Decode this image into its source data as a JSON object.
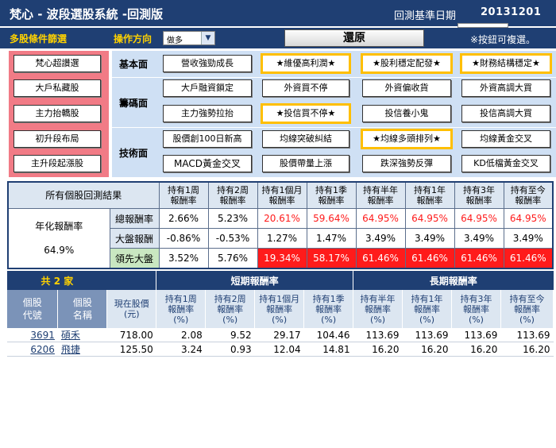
{
  "header": {
    "title": "梵心 - 波段選股系統 -回測版",
    "base_date_label": "回測基準日期",
    "base_date": "20131201"
  },
  "toolbar": {
    "filter_label": "多股條件篩選",
    "direction_label": "操作方向",
    "direction_value": "做多",
    "restore_label": "還原",
    "hint": "※按鈕可複選。"
  },
  "filters": {
    "presets": [
      "梵心超讚選",
      "大戶私藏股",
      "主力抬轎股",
      "初升段布局",
      "主升段起漲股"
    ],
    "categories": {
      "fundamental": "基本面",
      "chip": "籌碼面",
      "technical": "技術面"
    },
    "fundamental": [
      "營收強勁成長",
      "★維優高利潤★",
      "★股利穩定配發★",
      "★財務結構穩定★"
    ],
    "chip_row1": [
      "大戶融資鎖定",
      "外資買不停",
      "外資偏收貨",
      "外資高調大買"
    ],
    "chip_row2": [
      "主力強勢拉抬",
      "★投信買不停★",
      "投信養小鬼",
      "投信高調大買"
    ],
    "tech_row1": [
      "股價創100日新高",
      "均線突破糾結",
      "★均線多頭排列★",
      "均線黃金交叉"
    ],
    "tech_row2": [
      "MACD黃金交叉",
      "股價帶量上漲",
      "跌深強勢反彈",
      "KD低檔黃金交叉"
    ]
  },
  "results": {
    "title": "所有個股回測結果",
    "columns": [
      "持有1周\n報酬率",
      "持有2周\n報酬率",
      "持有1個月\n報酬率",
      "持有1季\n報酬率",
      "持有半年\n報酬率",
      "持有1年\n報酬率",
      "持有3年\n報酬率",
      "持有至今\n報酬率"
    ],
    "annual_label": "年化報酬率",
    "annual_value": "64.9%",
    "rows": [
      {
        "label": "總報酬率",
        "values": [
          "2.66%",
          "5.23%",
          "20.61%",
          "59.64%",
          "64.95%",
          "64.95%",
          "64.95%",
          "64.95%"
        ]
      },
      {
        "label": "大盤報酬",
        "values": [
          "-0.86%",
          "-0.53%",
          "1.27%",
          "1.47%",
          "3.49%",
          "3.49%",
          "3.49%",
          "3.49%"
        ]
      },
      {
        "label": "領先大盤",
        "values": [
          "3.52%",
          "5.76%",
          "19.34%",
          "58.17%",
          "61.46%",
          "61.46%",
          "61.46%",
          "61.46%"
        ]
      }
    ]
  },
  "stocks": {
    "count_label": "共 2 家",
    "short_term_label": "短期報酬率",
    "long_term_label": "長期報酬率",
    "code_header": "個股\n代號",
    "name_header": "個股\n名稱",
    "price_header": "現在股價\n(元)",
    "return_headers": [
      "持有1周\n報酬率\n(%)",
      "持有2周\n報酬率\n(%)",
      "持有1個月\n報酬率\n(%)",
      "持有1季\n報酬率\n(%)",
      "持有半年\n報酬率\n(%)",
      "持有1年\n報酬率\n(%)",
      "持有3年\n報酬率\n(%)",
      "持有至今\n報酬率\n(%)"
    ],
    "rows": [
      {
        "code": "3691",
        "name": "碩禾",
        "price": "718.00",
        "returns": [
          "2.08",
          "9.52",
          "29.17",
          "104.46",
          "113.69",
          "113.69",
          "113.69",
          "113.69"
        ]
      },
      {
        "code": "6206",
        "name": "飛捷",
        "price": "125.50",
        "returns": [
          "3.24",
          "0.93",
          "12.04",
          "14.81",
          "16.20",
          "16.20",
          "16.20",
          "16.20"
        ]
      }
    ]
  },
  "colors": {
    "navy": "#1f3f73",
    "highlight_red": "#ff1b1b",
    "selected_outline": "#ffbf00",
    "preset_pink": "#f17b86",
    "panel_blue": "#cfe0f4"
  }
}
